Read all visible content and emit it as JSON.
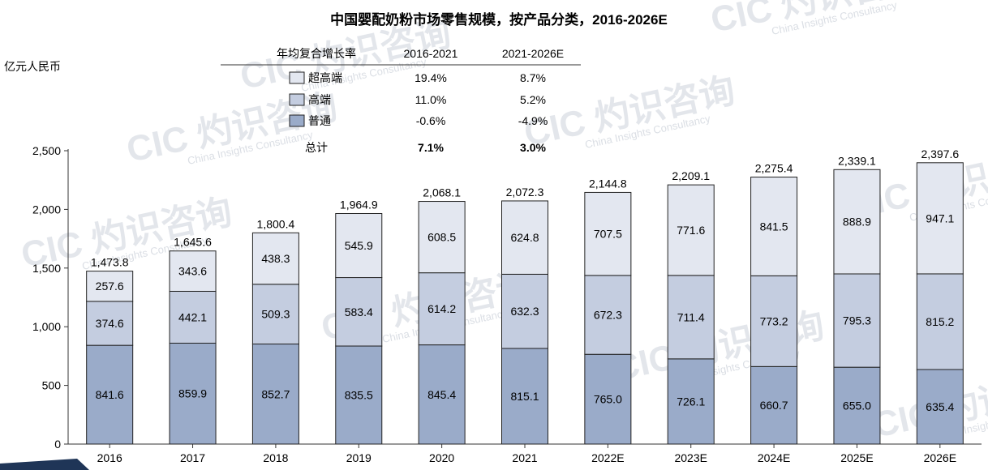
{
  "chart_data": {
    "type": "bar",
    "stacked": true,
    "title": "中国婴配奶粉市场零售规模，按产品分类，2016-2026E",
    "ylabel": "亿元人民币",
    "ylim": [
      0,
      2500
    ],
    "yticks": [
      0,
      500,
      1000,
      1500,
      2000,
      2500
    ],
    "ytick_labels": [
      "0",
      "500",
      "1,000",
      "1,500",
      "2,000",
      "2,500"
    ],
    "categories": [
      "2016",
      "2017",
      "2018",
      "2019",
      "2020",
      "2021",
      "2022E",
      "2023E",
      "2024E",
      "2025E",
      "2026E"
    ],
    "series": [
      {
        "name": "普通",
        "color": "#9aabc9",
        "values": [
          841.6,
          859.9,
          852.7,
          835.5,
          845.4,
          815.1,
          765.0,
          726.1,
          660.7,
          655.0,
          635.4
        ],
        "labels": [
          "841.6",
          "859.9",
          "852.7",
          "835.5",
          "845.4",
          "815.1",
          "765.0",
          "726.1",
          "660.7",
          "655.0",
          "635.4"
        ]
      },
      {
        "name": "高端",
        "color": "#c4cde0",
        "values": [
          374.6,
          442.1,
          509.3,
          583.4,
          614.2,
          632.3,
          672.3,
          711.4,
          773.2,
          795.3,
          815.2
        ],
        "labels": [
          "374.6",
          "442.1",
          "509.3",
          "583.4",
          "614.2",
          "632.3",
          "672.3",
          "711.4",
          "773.2",
          "795.3",
          "815.2"
        ]
      },
      {
        "name": "超高端",
        "color": "#e3e7f0",
        "values": [
          257.6,
          343.6,
          438.3,
          545.9,
          608.5,
          624.8,
          707.5,
          771.6,
          841.5,
          888.9,
          947.1
        ],
        "labels": [
          "257.6",
          "343.6",
          "438.3",
          "545.9",
          "608.5",
          "624.8",
          "707.5",
          "771.6",
          "841.5",
          "888.9",
          "947.1"
        ]
      }
    ],
    "totals": [
      1473.8,
      1645.6,
      1800.4,
      1964.9,
      2068.1,
      2072.3,
      2144.8,
      2209.1,
      2275.4,
      2339.1,
      2397.6
    ],
    "total_labels": [
      "1,473.8",
      "1,645.6",
      "1,800.4",
      "1,964.9",
      "2,068.1",
      "2,072.3",
      "2,144.8",
      "2,209.1",
      "2,275.4",
      "2,339.1",
      "2,397.6"
    ],
    "cagr_table": {
      "header": [
        "年均复合增长率",
        "2016-2021",
        "2021-2026E"
      ],
      "rows": [
        {
          "name": "超高端",
          "c1": "19.4%",
          "c2": "8.7%"
        },
        {
          "name": "高端",
          "c1": "11.0%",
          "c2": "5.2%"
        },
        {
          "name": "普通",
          "c1": "-0.6%",
          "c2": "-4.9%"
        }
      ],
      "total": {
        "name": "总计",
        "c1": "7.1%",
        "c2": "3.0%"
      }
    }
  },
  "watermark": {
    "cn": "灼识咨询",
    "en": "China Insights Consultancy",
    "logo": "CIC"
  }
}
